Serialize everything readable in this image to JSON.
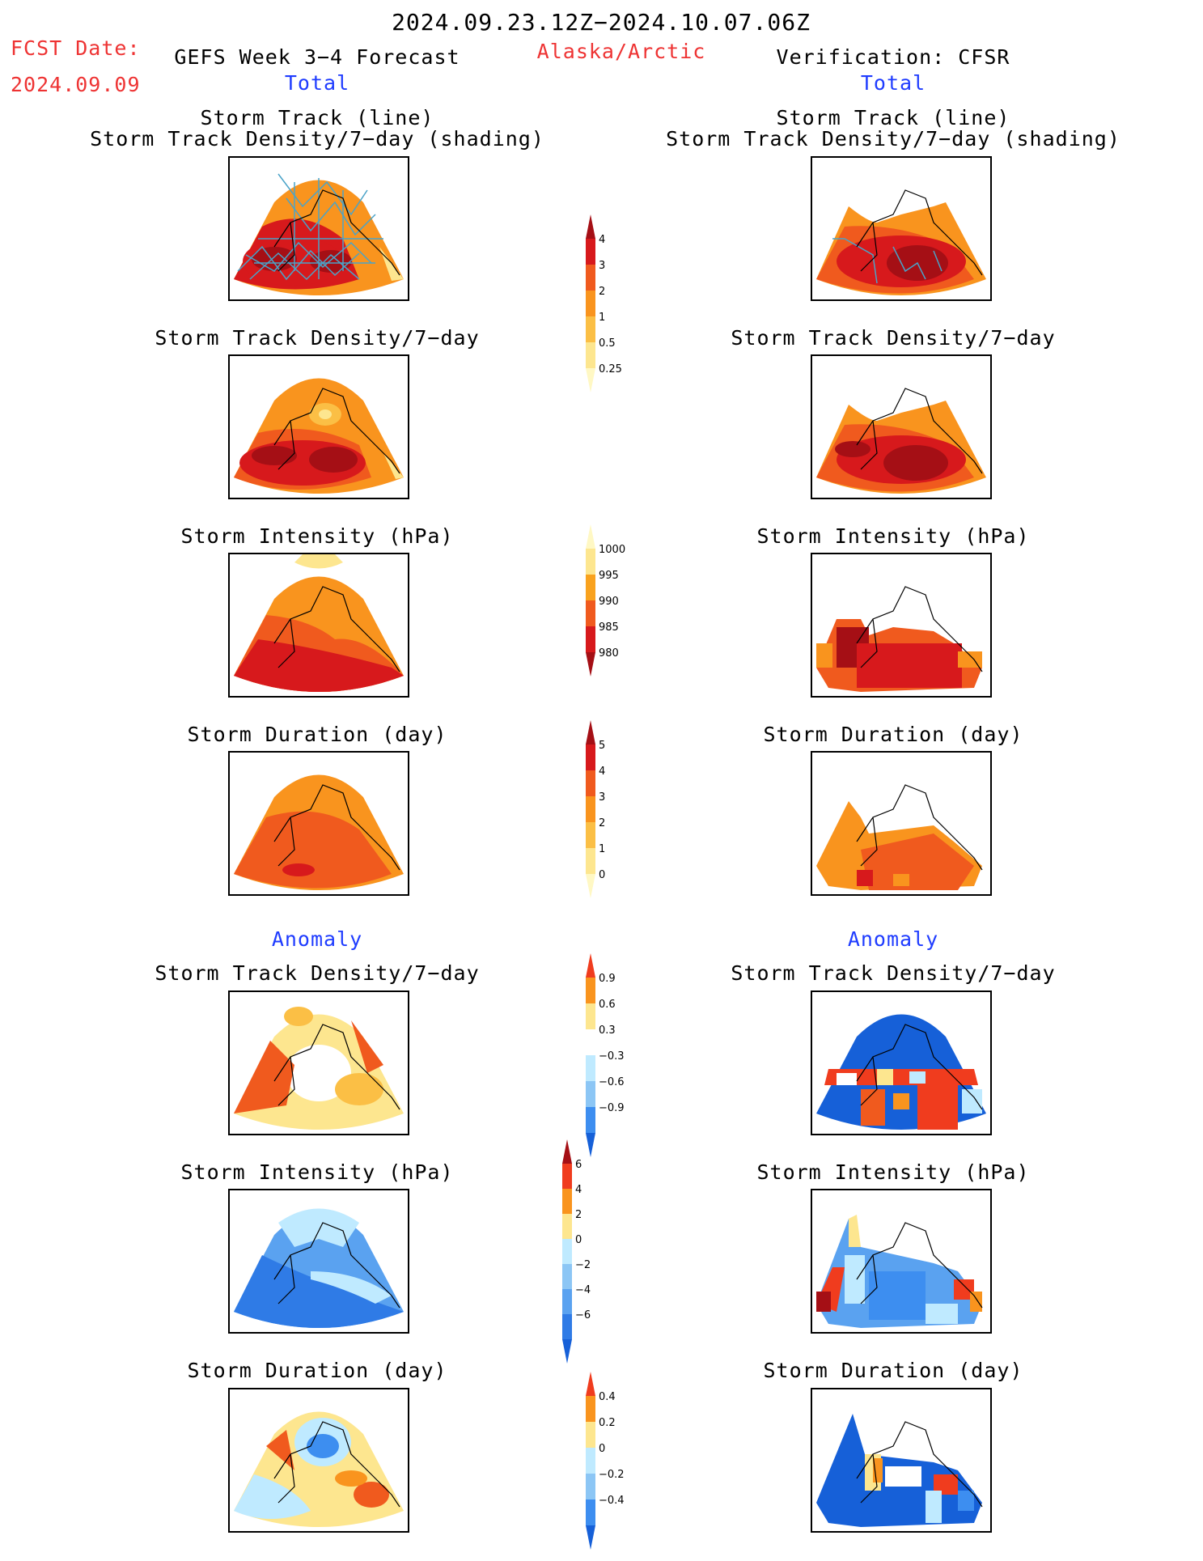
{
  "header": {
    "period": "2024.09.23.12Z−2024.10.07.06Z",
    "fcst_label": "FCST Date:",
    "fcst_date": "2024.09.09",
    "left_title": "GEFS Week 3−4 Forecast",
    "region": "Alaska/Arctic",
    "right_title": "Verification: CFSR"
  },
  "sections": {
    "total": "Total",
    "anomaly": "Anomaly"
  },
  "panel_titles": {
    "track_line": "Storm Track (line)",
    "track_shading": "Storm Track Density/7−day (shading)",
    "density": "Storm Track Density/7−day",
    "intensity": "Storm Intensity (hPa)",
    "duration": "Storm Duration (day)"
  },
  "colorbars": [
    {
      "name": "total-density",
      "labels": [
        "4",
        "3",
        "2",
        "1",
        "0.5",
        "0.25"
      ],
      "colors": [
        "#a50f15",
        "#d7191c",
        "#f05a1e",
        "#f9941e",
        "#fbbf45",
        "#fde68f",
        "#fff8c4"
      ]
    },
    {
      "name": "total-intensity",
      "labels": [
        "1000",
        "995",
        "990",
        "985",
        "980"
      ],
      "colors": [
        "#fff8c4",
        "#fde68f",
        "#f9a21e",
        "#f05a1e",
        "#d7191c",
        "#a50f15"
      ]
    },
    {
      "name": "total-duration",
      "labels": [
        "5",
        "4",
        "3",
        "2",
        "1",
        "0"
      ],
      "colors": [
        "#a50f15",
        "#d7191c",
        "#f05a1e",
        "#f9941e",
        "#fbbf45",
        "#fde68f",
        "#fff8c4"
      ]
    },
    {
      "name": "anom-density",
      "labels": [
        "0.9",
        "0.6",
        "0.3",
        "−0.3",
        "−0.6",
        "−0.9"
      ],
      "colors": [
        "#f03c1e",
        "#f9941e",
        "#fde68f",
        "#ffffff",
        "#bfeaff",
        "#8cc6f5",
        "#3d8ef0",
        "#1660d8"
      ]
    },
    {
      "name": "anom-intensity",
      "labels": [
        "6",
        "4",
        "2",
        "0",
        "−2",
        "−4",
        "−6"
      ],
      "colors": [
        "#a50f15",
        "#f03c1e",
        "#f9941e",
        "#fde68f",
        "#bfeaff",
        "#8cc6f5",
        "#5aa2f0",
        "#2f7be6",
        "#1660d8"
      ]
    },
    {
      "name": "anom-duration",
      "labels": [
        "0.4",
        "0.2",
        "0",
        "−0.2",
        "−0.4"
      ],
      "colors": [
        "#f03c1e",
        "#f9941e",
        "#fde68f",
        "#bfeaff",
        "#8cc6f5",
        "#3d8ef0",
        "#1660d8"
      ]
    }
  ],
  "palette": {
    "dark_red": "#a50f15",
    "red": "#d7191c",
    "orange_red": "#f05a1e",
    "orange": "#f9941e",
    "light_orange": "#fbbf45",
    "yellow": "#fde68f",
    "light_blue": "#bfeaff",
    "mid_blue": "#5aa2f0",
    "blue": "#1660d8",
    "track_line": "#4aa3c8",
    "title_red": "#ee3333",
    "title_blue": "#1f3cff"
  }
}
